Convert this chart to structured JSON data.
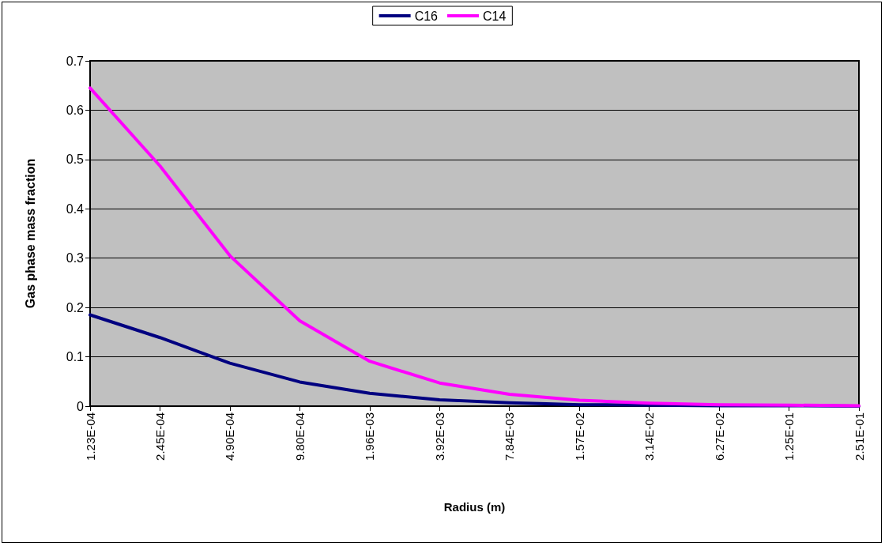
{
  "chart_data": {
    "type": "line",
    "xlabel": "Radius (m)",
    "ylabel": "Gas phase mass fraction",
    "categories": [
      "1.23E-04",
      "2.45E-04",
      "4.90E-04",
      "9.80E-04",
      "1.96E-03",
      "3.92E-03",
      "7.84E-03",
      "1.57E-02",
      "3.14E-02",
      "6.27E-02",
      "1.25E-01",
      "2.51E-01"
    ],
    "series": [
      {
        "name": "C16",
        "color": "#000080",
        "values": [
          0.185,
          0.139,
          0.087,
          0.049,
          0.026,
          0.013,
          0.007,
          0.003,
          0.002,
          0.001,
          0.001,
          0.0
        ]
      },
      {
        "name": "C14",
        "color": "#ff00ff",
        "values": [
          0.645,
          0.487,
          0.305,
          0.173,
          0.091,
          0.047,
          0.024,
          0.012,
          0.006,
          0.003,
          0.002,
          0.001
        ]
      }
    ],
    "ylim": [
      0,
      0.7
    ],
    "yticks": [
      0,
      0.1,
      0.2,
      0.3,
      0.4,
      0.5,
      0.6,
      0.7
    ],
    "grid": "y",
    "legend": "top",
    "marker": "none",
    "line_style": "solid"
  }
}
